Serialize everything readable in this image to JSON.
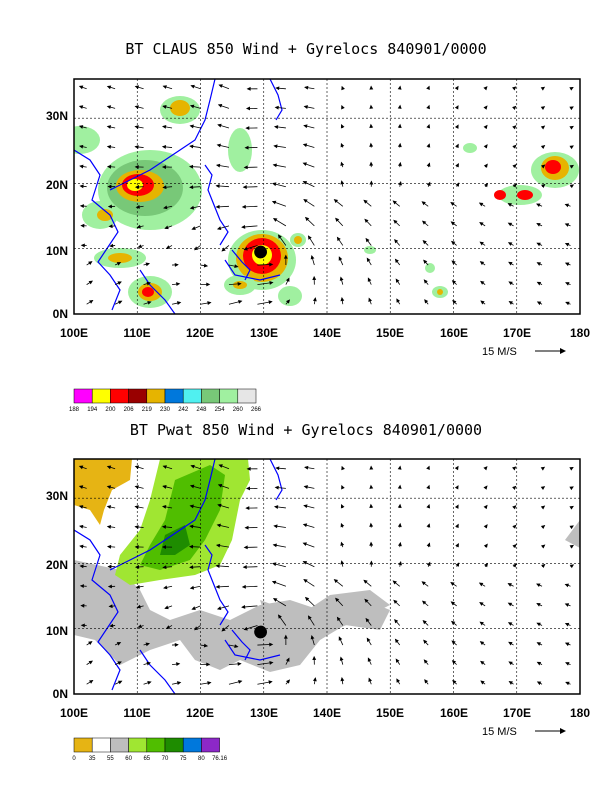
{
  "panels": [
    {
      "title": "BT CLAUS 850 Wind + Gyrelocs 840901/0000",
      "lat_labels": [
        "30N",
        "20N",
        "10N",
        "0N"
      ],
      "lon_labels": [
        "100E",
        "110E",
        "120E",
        "130E",
        "140E",
        "150E",
        "160E",
        "170E",
        "180"
      ],
      "ref_vector_label": "15 M/S",
      "colorbar_labels": [
        "188",
        "194",
        "200",
        "206",
        "219",
        "230",
        "242",
        "248",
        "254",
        "260",
        "266"
      ],
      "colorbar_colors": [
        "#ff00ff",
        "#ffff00",
        "#ff0000",
        "#990000",
        "#e6b400",
        "#0078dc",
        "#50f0f0",
        "#78c878",
        "#a0f0a0",
        "#e6e6e6"
      ]
    },
    {
      "title": "BT Pwat 850 Wind + Gyrelocs 840901/0000",
      "lat_labels": [
        "30N",
        "20N",
        "10N",
        "0N"
      ],
      "lon_labels": [
        "100E",
        "110E",
        "120E",
        "130E",
        "140E",
        "150E",
        "160E",
        "170E",
        "180"
      ],
      "ref_vector_label": "15 M/S",
      "colorbar_labels": [
        "0",
        "35",
        "55",
        "60",
        "65",
        "70",
        "75",
        "80",
        "76.16"
      ],
      "colorbar_colors": [
        "#e6b414",
        "#ffffff",
        "#bebebe",
        "#a0e632",
        "#50be00",
        "#1e8c00",
        "#0078dc",
        "#8c28c8"
      ]
    }
  ],
  "map_extent": {
    "lon_min": 100,
    "lon_max": 180,
    "lat_min": 0,
    "lat_max": 36
  },
  "gyre_center": {
    "lon": 129.5,
    "lat": 9.5
  }
}
